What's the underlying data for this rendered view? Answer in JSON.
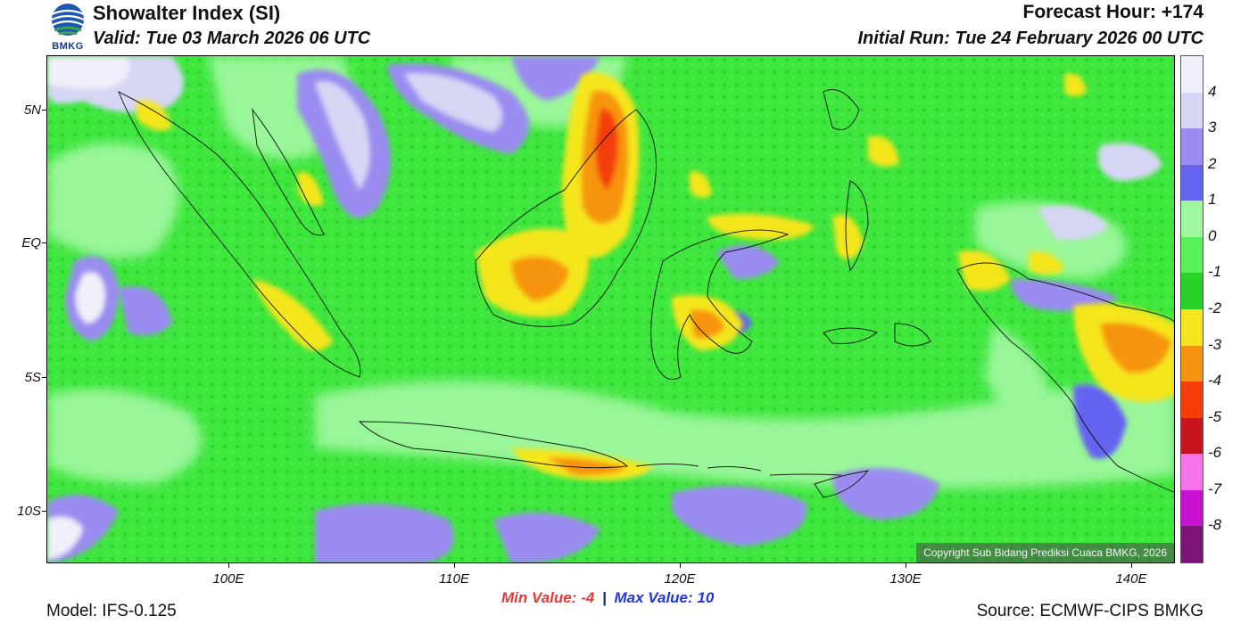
{
  "header": {
    "title": "Showalter Index (SI)",
    "valid": "Valid: Tue 03 March 2026 06 UTC",
    "forecast_hour": "Forecast Hour: +174",
    "initial_run": "Initial Run: Tue 24 February 2026 00 UTC"
  },
  "logo": {
    "text": "BMKG"
  },
  "map": {
    "copyright": "Copyright Sub Bidang Prediksi Cuaca BMKG, 2026",
    "lat_labels": [
      "5N",
      "EQ",
      "5S",
      "10S"
    ],
    "lon_labels": [
      "100E",
      "110E",
      "120E",
      "130E",
      "140E"
    ]
  },
  "colorbar": {
    "labels": [
      "4",
      "3",
      "2",
      "1",
      "0",
      "-1",
      "-2",
      "-3",
      "-4",
      "-5",
      "-6",
      "-7",
      "-8"
    ],
    "colors": [
      "#f0f0fa",
      "#d6d6f5",
      "#9a8cf0",
      "#6464f0",
      "#9ef79e",
      "#5af05a",
      "#28d228",
      "#f5e61e",
      "#f7940f",
      "#f53c0a",
      "#c8141e",
      "#f573eb",
      "#c814d2",
      "#7d1478"
    ]
  },
  "footer": {
    "min_label": "Min Value:",
    "min_value": "-4",
    "separator": "|",
    "max_label": "Max Value:",
    "max_value": "10",
    "model": "Model: IFS-0.125",
    "source": "Source: ECMWF-CIPS BMKG"
  }
}
